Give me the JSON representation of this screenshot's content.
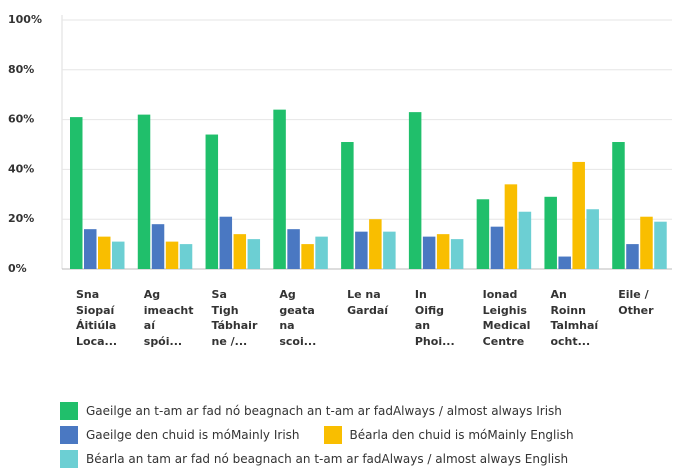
{
  "chart_data": {
    "type": "bar",
    "categories": [
      "Sna\nSiopaí\nÁitiúla\nLoca...",
      "Ag\nimeacht\naí\nspói...",
      "Sa\nTigh\nTábhair\nne /...",
      "Ag\ngeata\nna\nscoi...",
      "Le na\nGardaí",
      "In\nOifig\nan\nPhoi...",
      "Ionad\nLeighis\nMedical\nCentre",
      "An\nRoinn\nTalmhaí\nocht...",
      "Eile /\nOther"
    ],
    "series": [
      {
        "name": "Gaeilge an t-am ar fad nó beagnach an t-am ar fadAlways / almost always Irish",
        "color": "#20bf6b",
        "values": [
          61,
          62,
          54,
          64,
          51,
          63,
          28,
          29,
          51
        ]
      },
      {
        "name": "Gaeilge den chuid is móMainly Irish",
        "color": "#4a78c2",
        "values": [
          16,
          18,
          21,
          16,
          15,
          13,
          17,
          5,
          10
        ]
      },
      {
        "name": "Béarla den chuid is móMainly English",
        "color": "#f9be00",
        "values": [
          13,
          11,
          14,
          10,
          20,
          14,
          34,
          43,
          21
        ]
      },
      {
        "name": "Béarla an tam ar fad nó beagnach an t-am ar fadAlways / almost always English",
        "color": "#6ccfd3",
        "values": [
          11,
          10,
          12,
          13,
          15,
          12,
          23,
          24,
          19
        ]
      }
    ],
    "ylim": [
      0,
      100
    ],
    "yticks": [
      {
        "value": 0,
        "label": "0%"
      },
      {
        "value": 20,
        "label": "20%"
      },
      {
        "value": 40,
        "label": "40%"
      },
      {
        "value": 60,
        "label": "60%"
      },
      {
        "value": 80,
        "label": "80%"
      },
      {
        "value": 100,
        "label": "100%"
      }
    ],
    "grid": true,
    "legend": "bottom"
  }
}
